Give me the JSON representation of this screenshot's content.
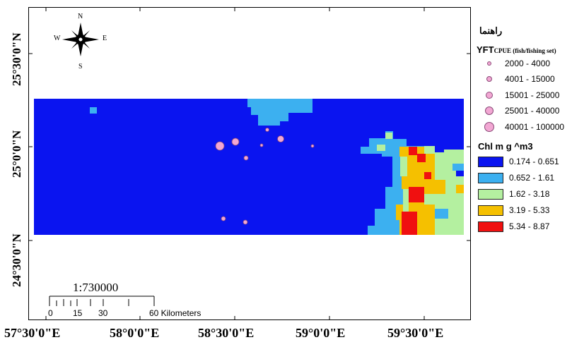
{
  "map": {
    "lat_labels": [
      "25°30'0\"N",
      "25°0'0\"N",
      "24°30'0\"N"
    ],
    "lon_labels": [
      "57°30'0\"E",
      "58°0'0\"E",
      "58°30'0\"E",
      "59°0'0\"E",
      "59°30'0\"E"
    ],
    "compass": {
      "n": "N",
      "s": "S",
      "e": "E",
      "w": "W"
    },
    "scale_ratio": "1:730000",
    "scale_ticks": [
      "0",
      "15",
      "30",
      "60 Kilometers"
    ]
  },
  "legend": {
    "heading": "راهنما",
    "cpue_title_main": "YFT",
    "cpue_title_sub": "CPUE (fish/fishing set)",
    "cpue_classes": [
      "2000 - 4000",
      "4001 - 15000",
      "15001 - 25000",
      "25001 - 40000",
      "40001 - 100000"
    ],
    "chl_title": "Chl m g ^m3",
    "chl_classes": [
      {
        "label": "0.174 - 0.651",
        "color": "#0a14f0"
      },
      {
        "label": "0.652 - 1.61",
        "color": "#3cb0f0"
      },
      {
        "label": "1.62 - 3.18",
        "color": "#b4f0a0"
      },
      {
        "label": "3.19 - 5.33",
        "color": "#f5c000"
      },
      {
        "label": "5.34 - 8.87",
        "color": "#f01010"
      }
    ],
    "point_color": "#f2a7d3"
  }
}
